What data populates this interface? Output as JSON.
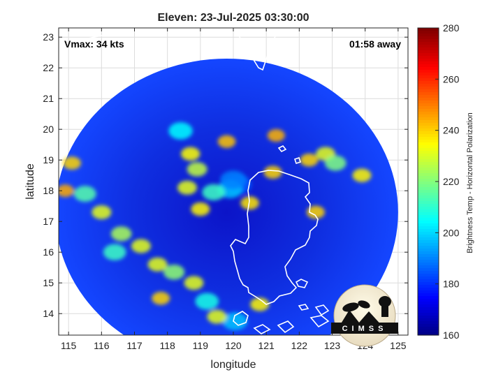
{
  "chart_data": {
    "type": "heatmap",
    "title": "Eleven: 23-Jul-2025 03:30:00",
    "xlabel": "longitude",
    "ylabel": "latitude",
    "xlim": [
      114.7,
      125.3
    ],
    "ylim": [
      13.3,
      23.3
    ],
    "xticks": [
      115,
      116,
      117,
      118,
      119,
      120,
      121,
      122,
      123,
      124,
      125
    ],
    "yticks": [
      14,
      15,
      16,
      17,
      18,
      19,
      20,
      21,
      22,
      23
    ],
    "grid": true,
    "annotations": {
      "vmax": "Vmax: 34 kts",
      "away": "01:58 away"
    },
    "colorbar": {
      "label": "Brightness Temp - Horizontal Polarization",
      "range": [
        160,
        280
      ],
      "ticks": [
        160,
        180,
        200,
        220,
        240,
        260,
        280
      ],
      "colormap": "jet"
    },
    "swath": {
      "center": [
        119.8,
        17.3
      ],
      "rx_deg": 5.2,
      "ry_deg": 5.0
    },
    "features": [
      {
        "lon": 120.15,
        "lat": 18.2,
        "tb": 185
      },
      {
        "lon": 119.9,
        "lat": 18.05,
        "tb": 198
      },
      {
        "lon": 120.0,
        "lat": 18.35,
        "tb": 190
      },
      {
        "lon": 119.4,
        "lat": 17.95,
        "tb": 212
      },
      {
        "lon": 118.4,
        "lat": 19.95,
        "tb": 205
      },
      {
        "lon": 118.7,
        "lat": 19.2,
        "tb": 235
      },
      {
        "lon": 118.9,
        "lat": 18.7,
        "tb": 228
      },
      {
        "lon": 118.6,
        "lat": 18.1,
        "tb": 232
      },
      {
        "lon": 119.0,
        "lat": 17.4,
        "tb": 236
      },
      {
        "lon": 120.5,
        "lat": 17.6,
        "tb": 238
      },
      {
        "lon": 121.2,
        "lat": 18.6,
        "tb": 240
      },
      {
        "lon": 119.8,
        "lat": 19.6,
        "tb": 242
      },
      {
        "lon": 121.3,
        "lat": 19.8,
        "tb": 244
      },
      {
        "lon": 122.8,
        "lat": 19.2,
        "tb": 232
      },
      {
        "lon": 123.1,
        "lat": 18.9,
        "tb": 220
      },
      {
        "lon": 123.9,
        "lat": 18.5,
        "tb": 236
      },
      {
        "lon": 122.3,
        "lat": 19.0,
        "tb": 240
      },
      {
        "lon": 122.5,
        "lat": 17.3,
        "tb": 240
      },
      {
        "lon": 115.5,
        "lat": 17.9,
        "tb": 215
      },
      {
        "lon": 116.0,
        "lat": 17.3,
        "tb": 232
      },
      {
        "lon": 116.6,
        "lat": 16.6,
        "tb": 225
      },
      {
        "lon": 117.2,
        "lat": 16.2,
        "tb": 232
      },
      {
        "lon": 116.4,
        "lat": 16.0,
        "tb": 212
      },
      {
        "lon": 117.7,
        "lat": 15.6,
        "tb": 232
      },
      {
        "lon": 118.2,
        "lat": 15.35,
        "tb": 222
      },
      {
        "lon": 118.8,
        "lat": 15.0,
        "tb": 232
      },
      {
        "lon": 119.2,
        "lat": 14.4,
        "tb": 208
      },
      {
        "lon": 120.05,
        "lat": 13.75,
        "tb": 198
      },
      {
        "lon": 119.5,
        "lat": 13.9,
        "tb": 232
      },
      {
        "lon": 120.8,
        "lat": 14.3,
        "tb": 236
      },
      {
        "lon": 117.8,
        "lat": 14.5,
        "tb": 240
      },
      {
        "lon": 115.1,
        "lat": 18.9,
        "tb": 240
      },
      {
        "lon": 114.9,
        "lat": 18.0,
        "tb": 245
      }
    ],
    "logo": {
      "text": "CIMSS"
    }
  }
}
